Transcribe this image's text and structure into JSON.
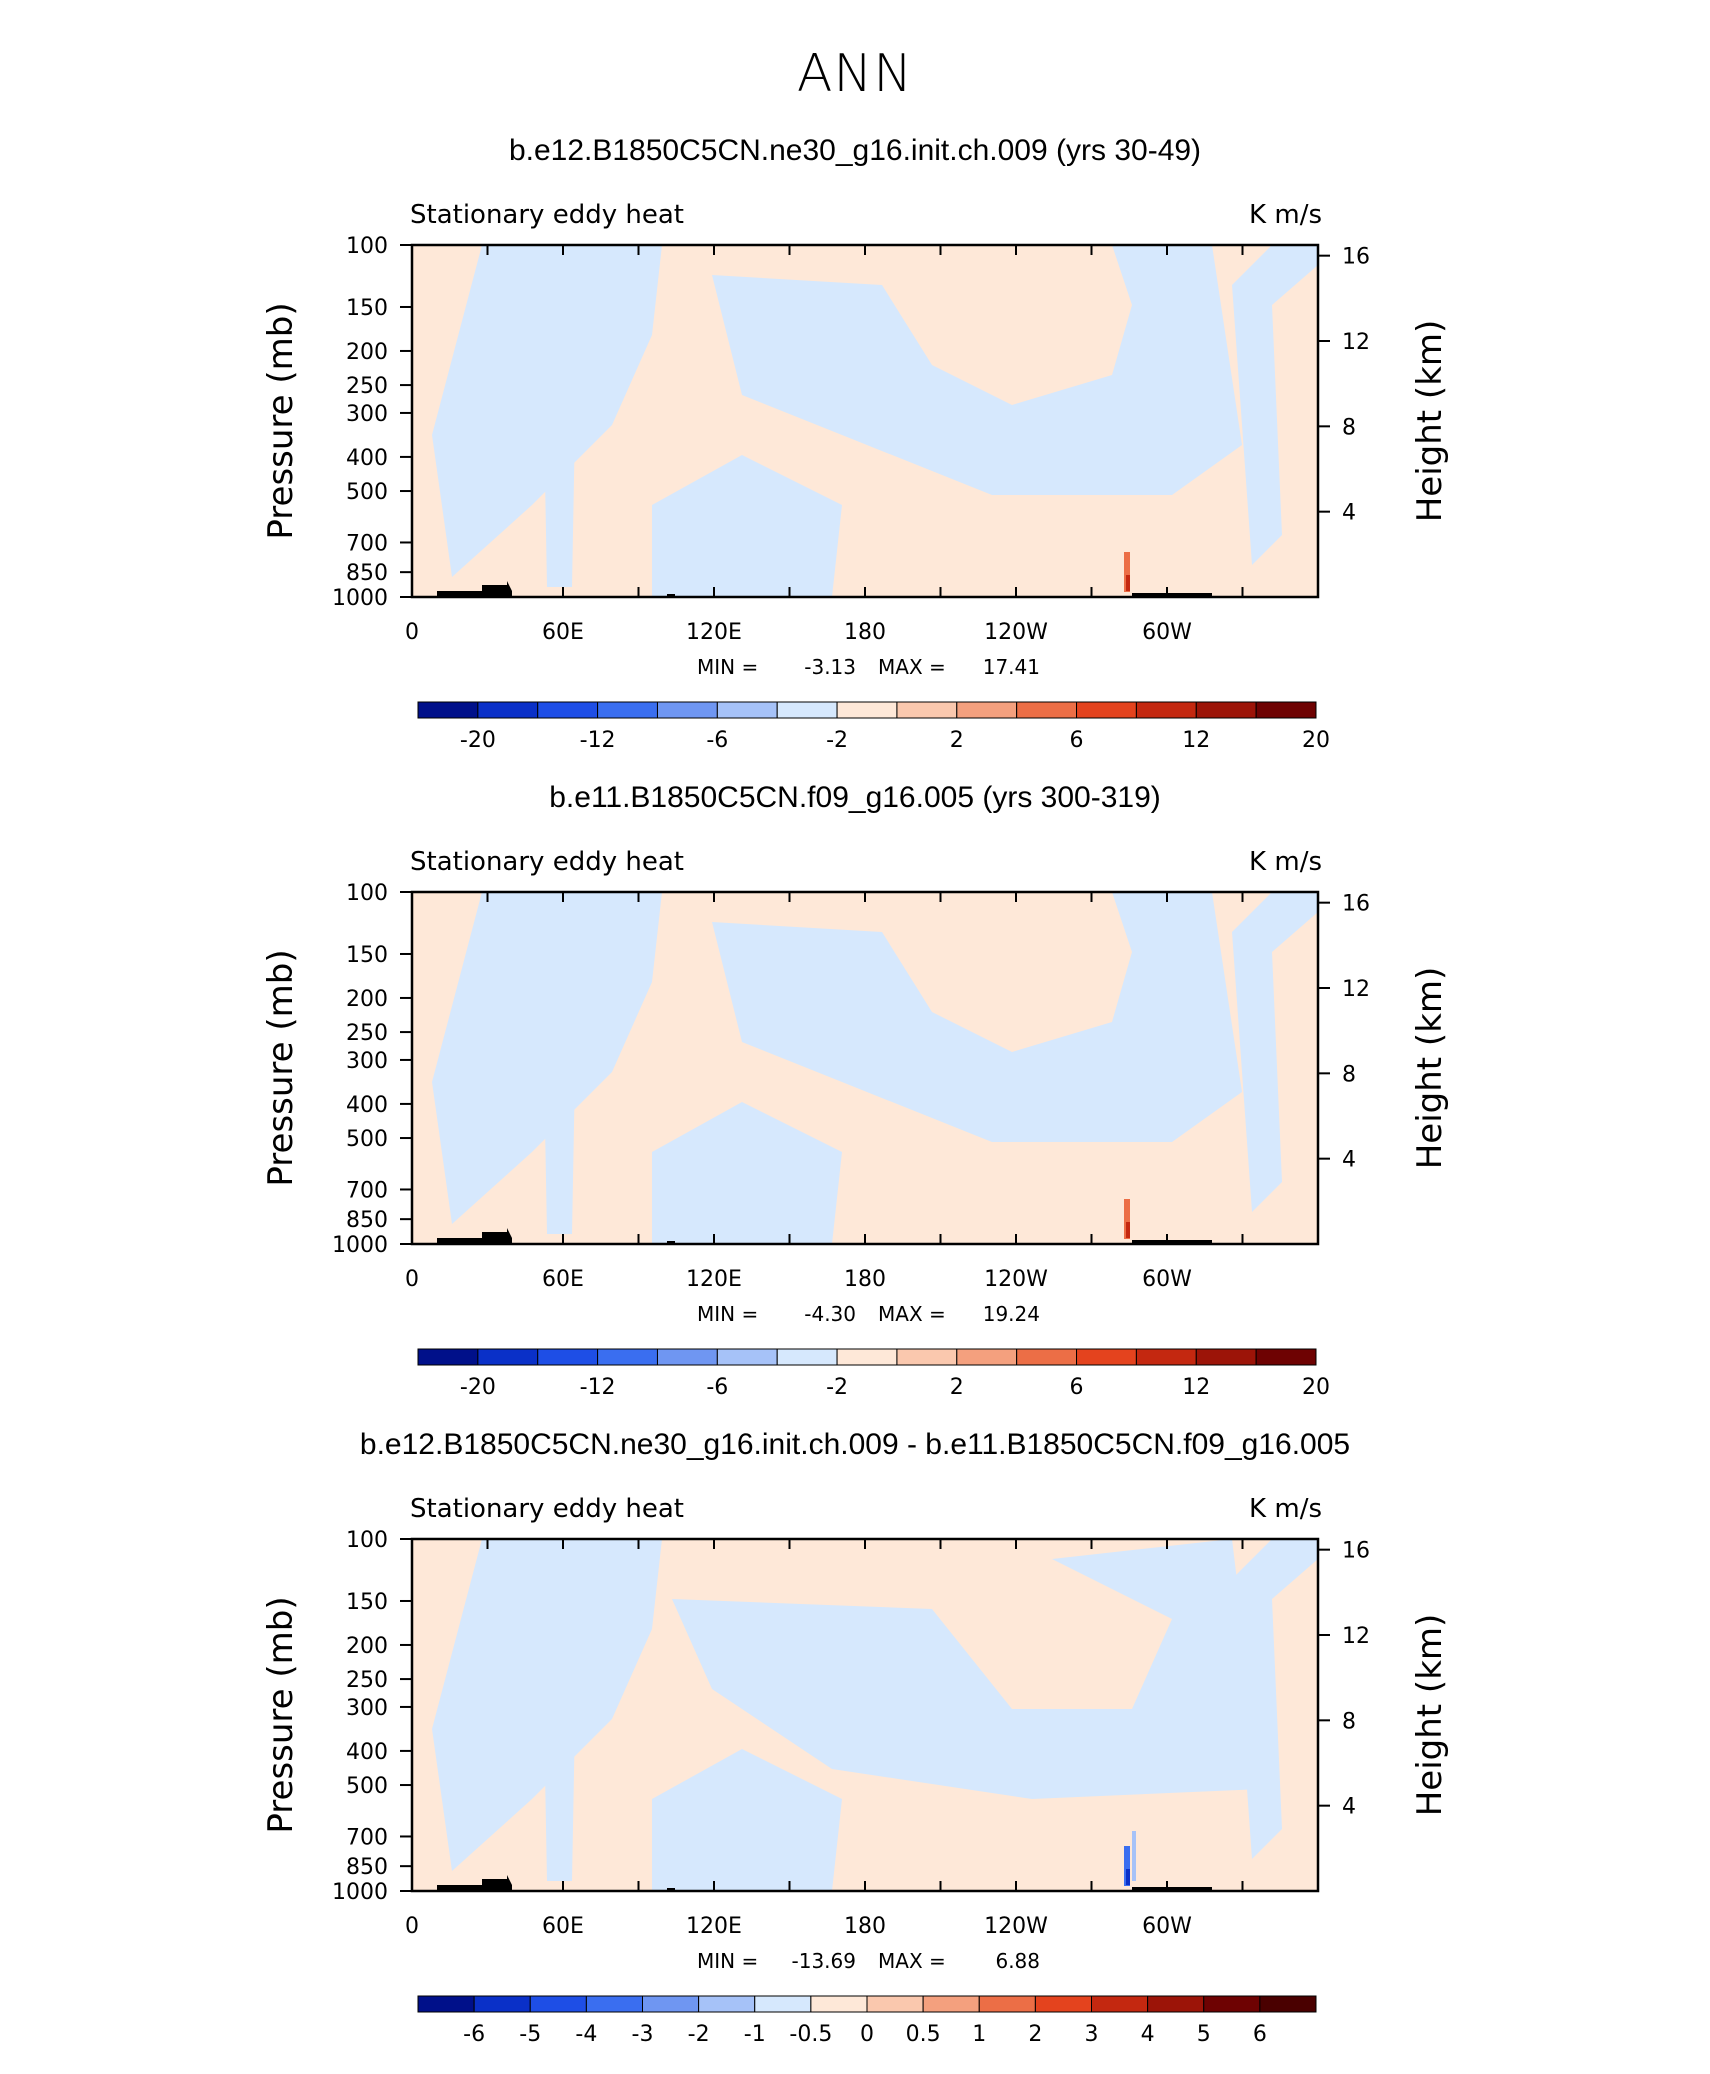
{
  "main_title": "ANN",
  "chart_data": [
    {
      "type": "heatmap",
      "title": "b.e12.B1850C5CN.ne30_g16.init.ch.009 (yrs 30-49)",
      "left_string": "Stationary eddy heat",
      "right_string": "K m/s",
      "ylabel": "Pressure (mb)",
      "ylabel_right": "Height (km)",
      "pressure_ticks": [
        100,
        150,
        200,
        250,
        300,
        400,
        500,
        700,
        850,
        1000
      ],
      "height_ticks": [
        16,
        12,
        8,
        4
      ],
      "x_tick_labels": [
        "0",
        "60E",
        "120E",
        "180",
        "120W",
        "60W"
      ],
      "stats": {
        "min_label": "MIN =",
        "min": "-3.13",
        "max_label": "MAX =",
        "max": "17.41"
      },
      "colorbar_labels": [
        "-20",
        "-12",
        "-6",
        "-2",
        "2",
        "6",
        "12",
        "20"
      ]
    },
    {
      "type": "heatmap",
      "title": "b.e11.B1850C5CN.f09_g16.005 (yrs 300-319)",
      "left_string": "Stationary eddy heat",
      "right_string": "K m/s",
      "ylabel": "Pressure (mb)",
      "ylabel_right": "Height (km)",
      "pressure_ticks": [
        100,
        150,
        200,
        250,
        300,
        400,
        500,
        700,
        850,
        1000
      ],
      "height_ticks": [
        16,
        12,
        8,
        4
      ],
      "x_tick_labels": [
        "0",
        "60E",
        "120E",
        "180",
        "120W",
        "60W"
      ],
      "stats": {
        "min_label": "MIN =",
        "min": "-4.30",
        "max_label": "MAX =",
        "max": "19.24"
      },
      "colorbar_labels": [
        "-20",
        "-12",
        "-6",
        "-2",
        "2",
        "6",
        "12",
        "20"
      ]
    },
    {
      "type": "heatmap",
      "title": "b.e12.B1850C5CN.ne30_g16.init.ch.009 - b.e11.B1850C5CN.f09_g16.005",
      "left_string": "Stationary eddy heat",
      "right_string": "K m/s",
      "ylabel": "Pressure (mb)",
      "ylabel_right": "Height (km)",
      "pressure_ticks": [
        100,
        150,
        200,
        250,
        300,
        400,
        500,
        700,
        850,
        1000
      ],
      "height_ticks": [
        16,
        12,
        8,
        4
      ],
      "x_tick_labels": [
        "0",
        "60E",
        "120E",
        "180",
        "120W",
        "60W"
      ],
      "stats": {
        "min_label": "MIN =",
        "min": "-13.69",
        "max_label": "MAX =",
        "max": "6.88"
      },
      "colorbar_labels": [
        "-6",
        "-5",
        "-4",
        "-3",
        "-2",
        "-1",
        "-0.5",
        "0",
        "0.5",
        "1",
        "2",
        "3",
        "4",
        "5",
        "6"
      ]
    }
  ],
  "colors": {
    "negative_light": "#d6e8fd",
    "positive_light": "#fee8d8",
    "colorbar16": [
      "#00108a",
      "#0a30c8",
      "#1e4ee6",
      "#3a6ef0",
      "#6f96f2",
      "#a6c2f8",
      "#d6e8fd",
      "#fee8d8",
      "#fac8ae",
      "#f4a07e",
      "#ec6e46",
      "#e4431e",
      "#c42810",
      "#9c1408",
      "#6e0202"
    ],
    "colorbar12": [
      "#00108a",
      "#0a30c8",
      "#1e4ee6",
      "#6f96f2",
      "#a6c2f8",
      "#d6e8fd",
      "#fee8d8",
      "#fac8ae",
      "#f4a07e",
      "#e4431e",
      "#c42810",
      "#9c1408",
      "#6e0202"
    ]
  }
}
